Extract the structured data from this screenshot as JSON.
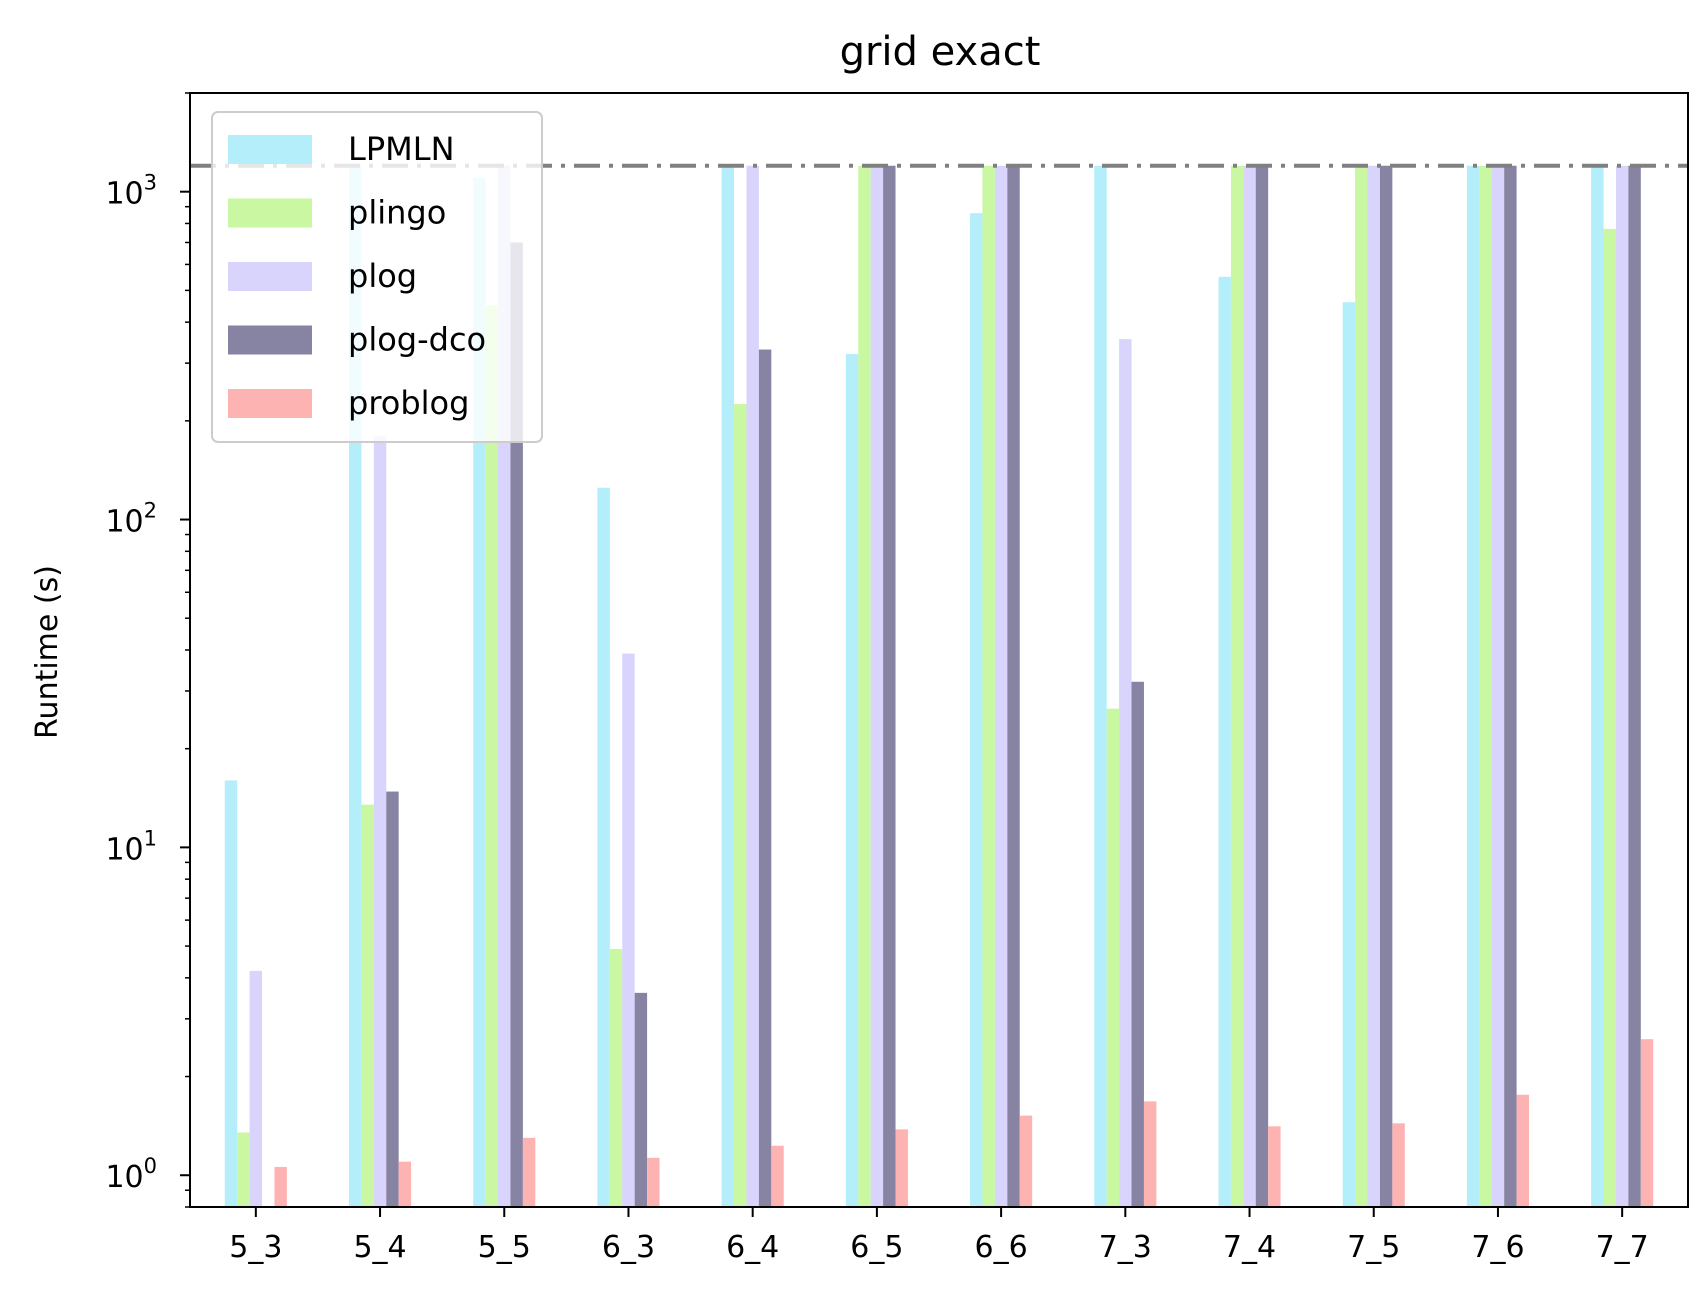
{
  "chart_data": {
    "type": "bar",
    "title": "grid exact",
    "xlabel": "",
    "ylabel": "Runtime (s)",
    "yscale": "log",
    "ylim": [
      0.8,
      2000
    ],
    "y_ticks": [
      {
        "value": 1,
        "base": "10",
        "exp": "0"
      },
      {
        "value": 10,
        "base": "10",
        "exp": "1"
      },
      {
        "value": 100,
        "base": "10",
        "exp": "2"
      },
      {
        "value": 1000,
        "base": "10",
        "exp": "3"
      }
    ],
    "timeout_line": 1200,
    "grid": false,
    "legend_position": "top-left",
    "categories": [
      "5_3",
      "5_4",
      "5_5",
      "6_3",
      "6_4",
      "6_5",
      "6_6",
      "7_3",
      "7_4",
      "7_5",
      "7_6",
      "7_7"
    ],
    "series": [
      {
        "name": "LPMLN",
        "color": "#b3eefa",
        "values": [
          16,
          1200,
          1100,
          125,
          1200,
          320,
          860,
          1200,
          550,
          460,
          1200,
          1200
        ]
      },
      {
        "name": "plingo",
        "color": "#c9f7a2",
        "values": [
          1.35,
          13.5,
          450,
          4.9,
          225,
          1200,
          1200,
          26.5,
          1200,
          1200,
          1200,
          770
        ]
      },
      {
        "name": "plog",
        "color": "#d8d4fb",
        "values": [
          4.2,
          180,
          1200,
          39,
          1200,
          1200,
          1200,
          355,
          1200,
          1200,
          1200,
          1200
        ]
      },
      {
        "name": "plog-dco",
        "color": "#8783a3",
        "values": [
          null,
          14.8,
          700,
          3.6,
          330,
          1200,
          1200,
          32,
          1200,
          1200,
          1200,
          1200
        ]
      },
      {
        "name": "problog",
        "color": "#fdb3b2",
        "values": [
          1.06,
          1.1,
          1.3,
          1.13,
          1.23,
          1.38,
          1.52,
          1.68,
          1.41,
          1.44,
          1.76,
          2.6
        ]
      }
    ]
  }
}
